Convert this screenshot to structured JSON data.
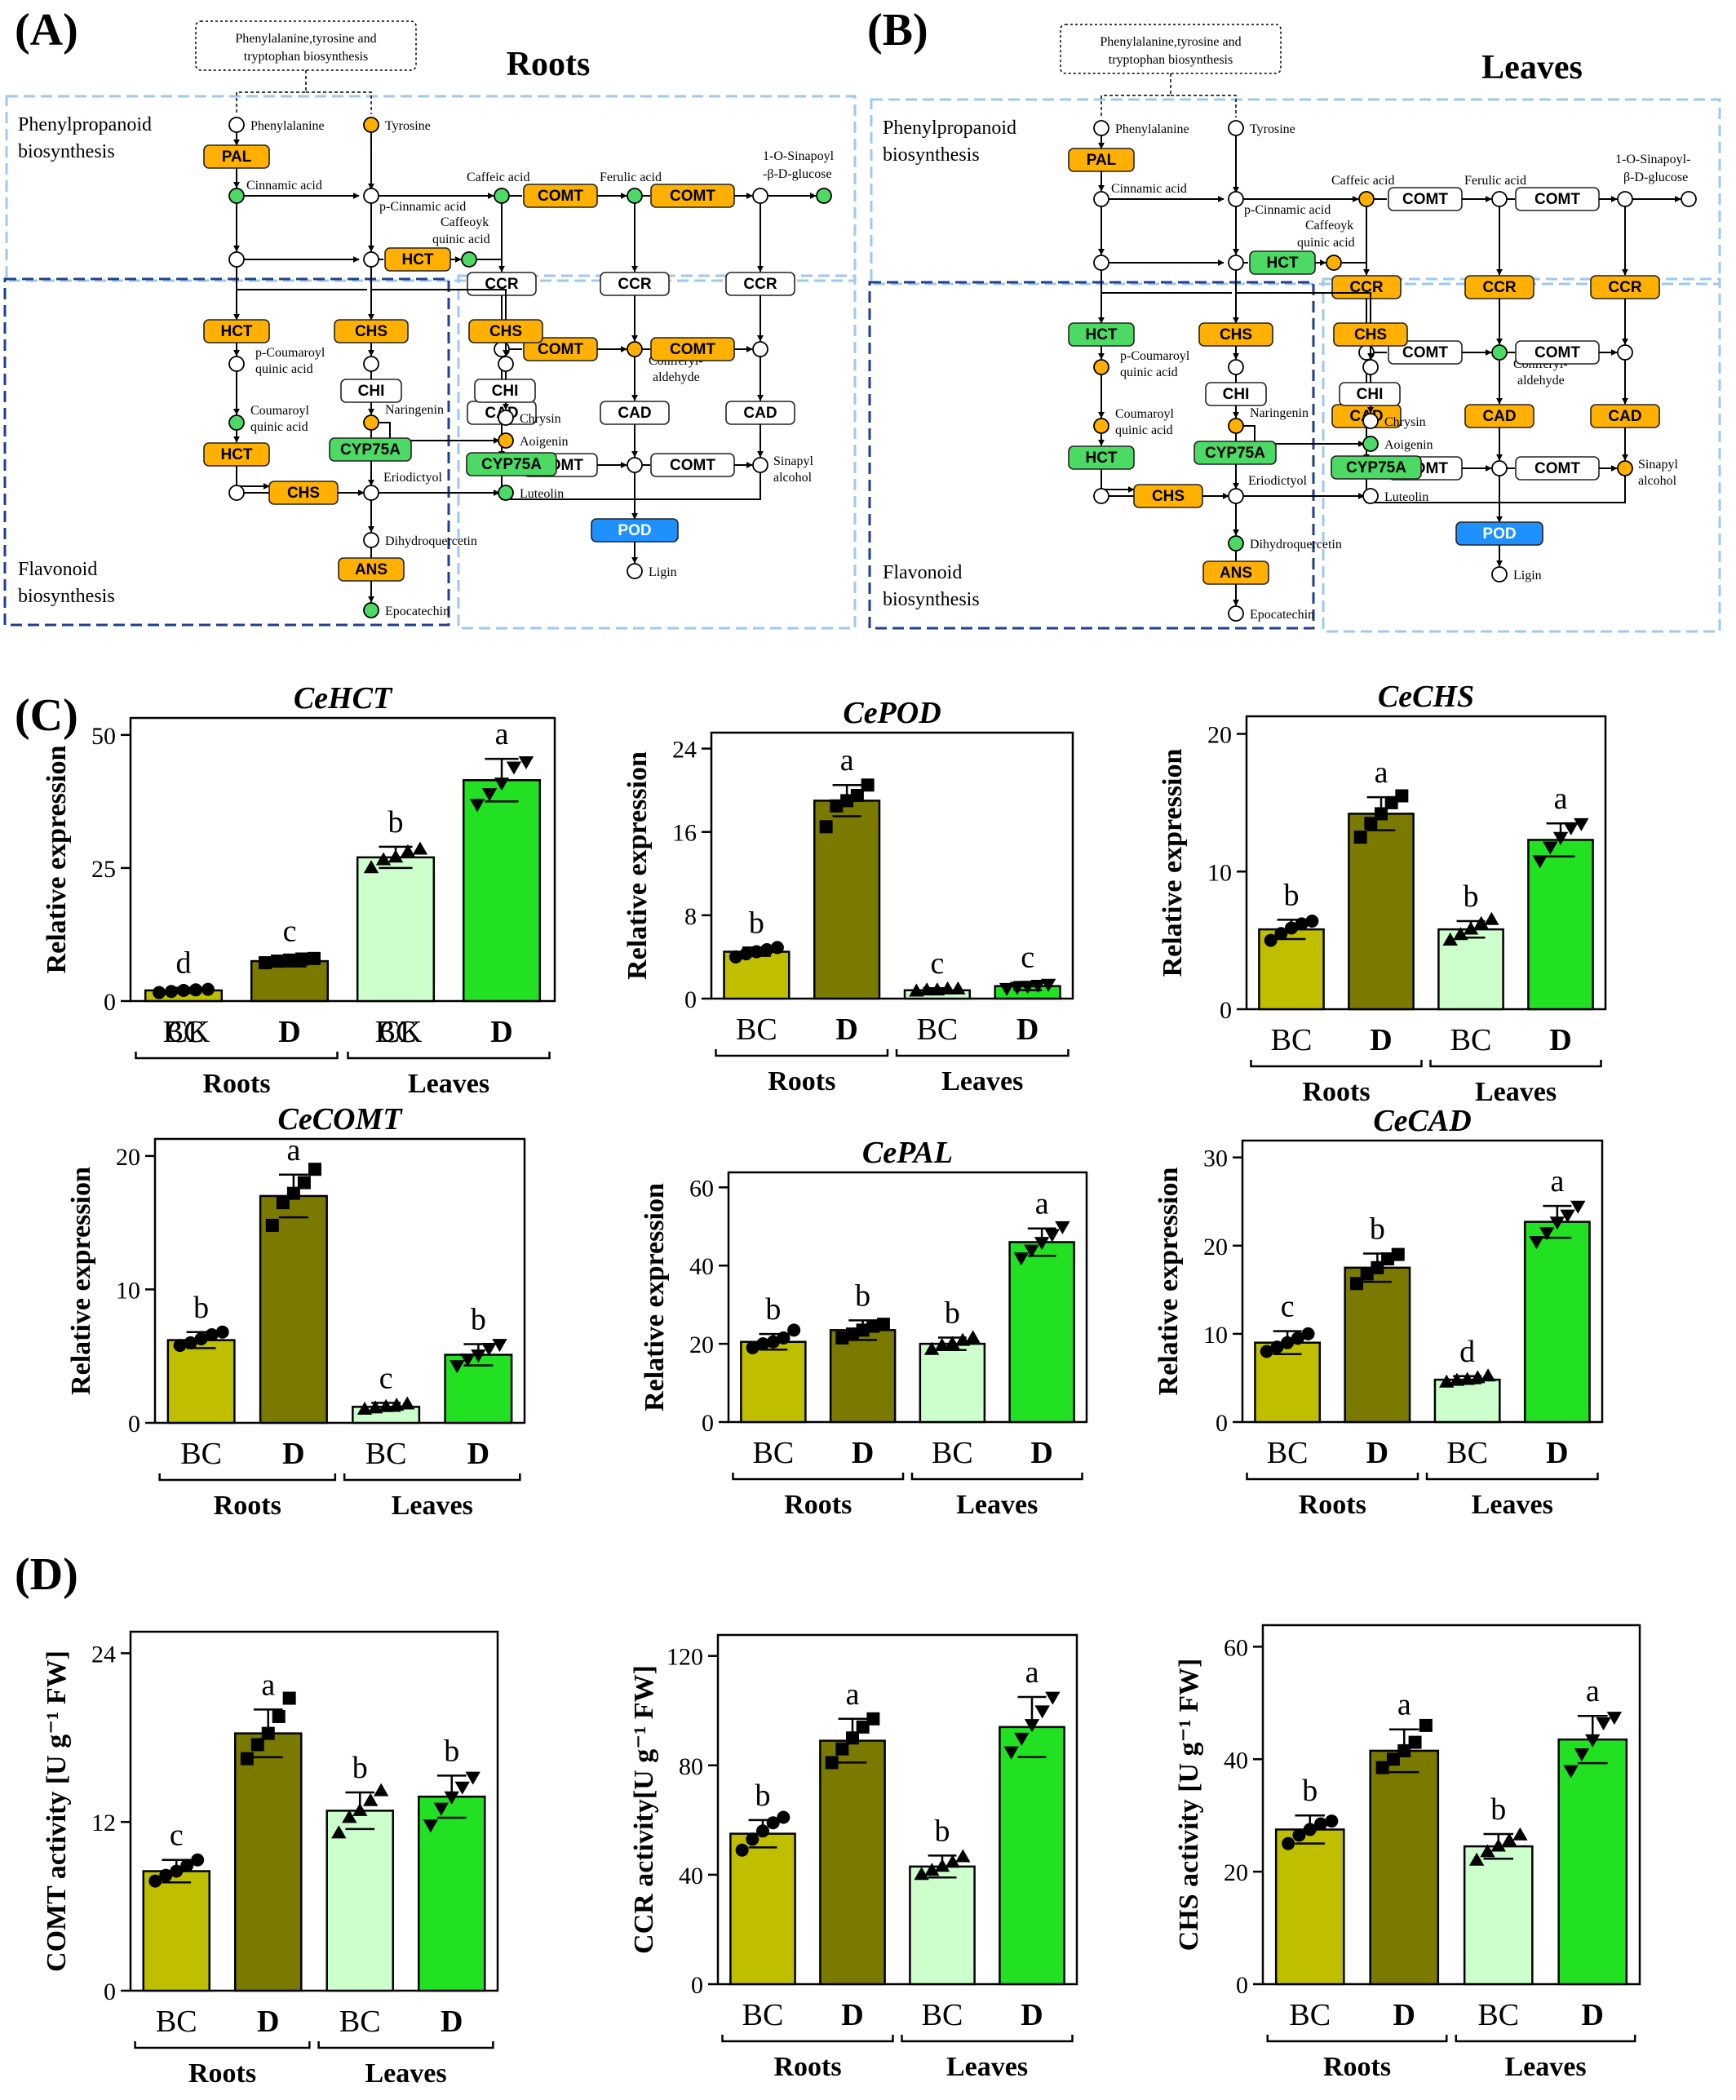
{
  "panel_labels": {
    "a": "(A)",
    "b": "(B)",
    "c": "(C)",
    "d": "(D)"
  },
  "colors": {
    "up": "#FFB000",
    "down": "#4CD964",
    "none": "#FFFFFF",
    "pod": "#1E90FF",
    "box_phenyl": "#9FC8EE",
    "box_flav": "#1F3F8F",
    "bar_bc_root": "#BFBF00",
    "bar_d_root": "#7A7A00",
    "bar_bc_leaf": "#CCFFCC",
    "bar_d_leaf": "#22E022"
  },
  "pathway_a": {
    "title": "Roots",
    "source": "Phenylalanine,tyrosine and tryptophan biosynthesis",
    "region_phenyl": "Phenylpropanoid biosynthesis",
    "region_flav": "Flavonoid biosynthesis",
    "enzymes": {
      "PAL": "up",
      "HCT_top": "up",
      "COMT_1": "up",
      "COMT_2": "up",
      "CCR_1": "none",
      "CCR_2": "none",
      "CCR_3": "none",
      "COMT_3": "up",
      "COMT_4": "up",
      "CAD_1": "none",
      "CAD_2": "none",
      "CAD_3": "none",
      "COMT_5": "none",
      "COMT_6": "none",
      "POD": "pod",
      "HCT_f1": "up",
      "CHS_1": "up",
      "CHS_2": "up",
      "CHI_1": "none",
      "CHI_2": "none",
      "HCT_f2": "up",
      "CYP75A_1": "down",
      "CYP75A_2": "down",
      "CHS_3": "up",
      "ANS": "up"
    },
    "metabolites": {
      "phenylalanine": "none",
      "tyrosine": "up",
      "cinnamic": "down",
      "p_cinnamic": "none",
      "caffeic": "down",
      "ferulic": "down",
      "sinapoyl_glucose": "down",
      "caffeoyl_quinic": "down",
      "coniferyl": "up",
      "sinapyl": "none",
      "p_coumaroyl": "none",
      "coumaroyl_quinic": "down",
      "naringenin": "up",
      "chrysin": "none",
      "aoigenin": "up",
      "luteolin": "down",
      "eriodictyol": "none",
      "dihydroquercetin": "none",
      "epocatechin": "down",
      "ligin": "none"
    }
  },
  "pathway_b": {
    "title": "Leaves",
    "source": "Phenylalanine,tyrosine and tryptophan biosynthesis",
    "region_phenyl": "Phenylpropanoid biosynthesis",
    "region_flav": "Flavonoid biosynthesis",
    "enzymes": {
      "PAL": "up",
      "HCT_top": "down",
      "COMT_1": "none",
      "COMT_2": "none",
      "CCR_1": "up",
      "CCR_2": "up",
      "CCR_3": "up",
      "COMT_3": "none",
      "COMT_4": "none",
      "CAD_1": "up",
      "CAD_2": "up",
      "CAD_3": "up",
      "COMT_5": "none",
      "COMT_6": "none",
      "POD": "pod",
      "HCT_f1": "down",
      "CHS_1": "up",
      "CHS_2": "up",
      "CHI_1": "none",
      "CHI_2": "none",
      "HCT_f2": "down",
      "CYP75A_1": "down",
      "CYP75A_2": "down",
      "CHS_3": "up",
      "ANS": "up"
    },
    "metabolites": {
      "phenylalanine": "none",
      "tyrosine": "none",
      "cinnamic": "none",
      "p_cinnamic": "none",
      "caffeic": "up",
      "ferulic": "none",
      "sinapoyl_glucose": "none",
      "caffeoyl_quinic": "up",
      "coniferyl": "down",
      "sinapyl": "up",
      "p_coumaroyl": "up",
      "coumaroyl_quinic": "up",
      "naringenin": "up",
      "chrysin": "none",
      "aoigenin": "down",
      "luteolin": "none",
      "eriodictyol": "none",
      "dihydroquercetin": "down",
      "epocatechin": "none",
      "ligin": "none"
    }
  },
  "metabolite_labels": {
    "phenylalanine": "Phenylalanine",
    "tyrosine": "Tyrosine",
    "cinnamic": "Cinnamic acid",
    "p_cinnamic": "p-Cinnamic acid",
    "caffeic": "Caffeic acid",
    "ferulic": "Ferulic acid",
    "sinapoyl_glucose_1": "1-O-Sinapoyl",
    "sinapoyl_glucose_a2": "-β-D-glucose",
    "sinapoyl_glucose_b1": "1-O-Sinapoyl-",
    "sinapoyl_glucose_b2": "β-D-glucose",
    "caffeoyl_quinic_a1": "Caffeoyk",
    "caffeoyl_quinic_2": "quinic acid",
    "caffeoyl_quinic_b1": "Caffeoyk",
    "coniferyl_1": "Coniferyl-",
    "coniferyl_2": "aldehyde",
    "sinapyl_1": "Sinapyl",
    "sinapyl_2": "alcohol",
    "p_coumaroyl_1": "p-Coumaroyl",
    "p_coumaroyl_2": "quinic acid",
    "coumaroyl_quinic_1": "Coumaroyl",
    "coumaroyl_quinic_2": "quinic acid",
    "naringenin": "Naringenin",
    "chrysin": "Chrysin",
    "aoigenin": "Aoigenin",
    "luteolin": "Luteolin",
    "eriodictyol": "Eriodictyol",
    "dihydroquercetin": "Dihydroquercetin",
    "epocatechin": "Epocatechin",
    "ligin": "Ligin"
  },
  "chart_data": [
    {
      "id": "hct",
      "type": "bar",
      "title": "CeHCT",
      "ylabel": "Relative expression",
      "ylim": [
        0,
        50
      ],
      "yticks": [
        0,
        25,
        50
      ],
      "categories": [
        "BC",
        "D",
        "BC",
        "D"
      ],
      "groups": [
        "Roots",
        "Leaves"
      ],
      "values": [
        2,
        7.5,
        27,
        41.5
      ],
      "errors": [
        0.5,
        1,
        2,
        4
      ],
      "letters": [
        "d",
        "c",
        "b",
        "a"
      ],
      "points": [
        [
          1.6,
          1.8,
          2.0,
          2.1,
          2.2
        ],
        [
          7.2,
          7.5,
          7.7,
          7.9,
          8.0
        ],
        [
          25,
          26.5,
          27,
          28,
          28.5
        ],
        [
          37,
          39,
          41,
          44,
          45
        ]
      ],
      "xlabel_overlap": [
        "CK",
        "CK"
      ],
      "grid": false
    },
    {
      "id": "pod",
      "type": "bar",
      "title": "CePOD",
      "ylabel": "Relative expression",
      "ylim": [
        0,
        24
      ],
      "yticks": [
        0,
        8,
        16,
        24
      ],
      "categories": [
        "BC",
        "D",
        "BC",
        "D"
      ],
      "groups": [
        "Roots",
        "Leaves"
      ],
      "values": [
        4.5,
        19,
        0.8,
        1.2
      ],
      "errors": [
        0.4,
        1.5,
        0.2,
        0.4
      ],
      "letters": [
        "b",
        "a",
        "c",
        "c"
      ],
      "points": [
        [
          4.0,
          4.3,
          4.5,
          4.7,
          4.9
        ],
        [
          16.5,
          18.5,
          19,
          19.5,
          20.5
        ],
        [
          0.7,
          0.8,
          0.8,
          0.9,
          0.9
        ],
        [
          1.0,
          1.1,
          1.2,
          1.3,
          1.4
        ]
      ],
      "grid": false
    },
    {
      "id": "chs",
      "type": "bar",
      "title": "CeCHS",
      "ylabel": "Relative expression",
      "ylim": [
        0,
        20
      ],
      "yticks": [
        0,
        10,
        20
      ],
      "categories": [
        "BC",
        "D",
        "BC",
        "D"
      ],
      "groups": [
        "Roots",
        "Leaves"
      ],
      "values": [
        5.8,
        14.2,
        5.8,
        12.3
      ],
      "errors": [
        0.7,
        1.2,
        0.6,
        1.2
      ],
      "letters": [
        "b",
        "a",
        "b",
        "a"
      ],
      "points": [
        [
          5.0,
          5.5,
          5.9,
          6.2,
          6.4
        ],
        [
          12.5,
          13.5,
          14.2,
          15,
          15.5
        ],
        [
          5.0,
          5.4,
          5.8,
          6.2,
          6.5
        ],
        [
          10.8,
          11.8,
          12.5,
          13.2,
          13.5
        ]
      ],
      "grid": false
    },
    {
      "id": "comt",
      "type": "bar",
      "title": "CeCOMT",
      "ylabel": "Relative expression",
      "ylim": [
        0,
        20
      ],
      "yticks": [
        0,
        10,
        20
      ],
      "categories": [
        "BC",
        "D",
        "BC",
        "D"
      ],
      "groups": [
        "Roots",
        "Leaves"
      ],
      "values": [
        6.2,
        17,
        1.2,
        5.1
      ],
      "errors": [
        0.6,
        1.6,
        0.3,
        0.8
      ],
      "letters": [
        "b",
        "a",
        "c",
        "b"
      ],
      "points": [
        [
          5.8,
          6.0,
          6.3,
          6.6,
          6.8
        ],
        [
          14.8,
          16.5,
          17.2,
          18,
          19
        ],
        [
          1.0,
          1.1,
          1.2,
          1.3,
          1.4
        ],
        [
          4.3,
          4.8,
          5.1,
          5.6,
          5.9
        ]
      ],
      "grid": false
    },
    {
      "id": "pal",
      "type": "bar",
      "title": "CePAL",
      "ylabel": "Relative expression",
      "ylim": [
        0,
        60
      ],
      "yticks": [
        0,
        20,
        40,
        60
      ],
      "categories": [
        "BC",
        "D",
        "BC",
        "D"
      ],
      "groups": [
        "Roots",
        "Leaves"
      ],
      "values": [
        20.5,
        23.5,
        20,
        46
      ],
      "errors": [
        2,
        2.5,
        1.6,
        3.5
      ],
      "letters": [
        "b",
        "b",
        "b",
        "a"
      ],
      "points": [
        [
          19,
          20,
          20.5,
          21.5,
          23.5
        ],
        [
          21.5,
          22.5,
          23.5,
          24.5,
          25
        ],
        [
          18.5,
          19.5,
          20,
          20.8,
          21.5
        ],
        [
          42,
          44,
          46,
          48,
          50
        ]
      ],
      "grid": false
    },
    {
      "id": "cad",
      "type": "bar",
      "title": "CeCAD",
      "ylabel": "Relative expression",
      "ylim": [
        0,
        30
      ],
      "yticks": [
        0,
        10,
        20,
        30
      ],
      "categories": [
        "BC",
        "D",
        "BC",
        "D"
      ],
      "groups": [
        "Roots",
        "Leaves"
      ],
      "values": [
        9,
        17.5,
        4.8,
        22.7
      ],
      "errors": [
        1.3,
        1.6,
        0.4,
        1.8
      ],
      "letters": [
        "c",
        "b",
        "d",
        "a"
      ],
      "points": [
        [
          8.0,
          8.5,
          9.0,
          9.5,
          10
        ],
        [
          15.7,
          16.8,
          17.5,
          18.5,
          19
        ],
        [
          4.5,
          4.7,
          4.8,
          5.0,
          5.2
        ],
        [
          20.5,
          21.5,
          22.7,
          23.5,
          24.5
        ]
      ],
      "grid": false
    },
    {
      "id": "comt_act",
      "type": "bar",
      "title": "",
      "ylabel": "COMT activity [U g⁻¹ FW]",
      "ylim": [
        0,
        24
      ],
      "yticks": [
        0,
        12,
        24
      ],
      "categories": [
        "BC",
        "D",
        "BC",
        "D"
      ],
      "groups": [
        "Roots",
        "Leaves"
      ],
      "values": [
        8.5,
        18.3,
        12.8,
        13.8
      ],
      "errors": [
        0.8,
        1.7,
        1.3,
        1.5
      ],
      "letters": [
        "c",
        "a",
        "b",
        "b"
      ],
      "points": [
        [
          7.8,
          8.2,
          8.5,
          8.9,
          9.3
        ],
        [
          16.5,
          17.5,
          18.3,
          19.5,
          20.8
        ],
        [
          11.2,
          12.3,
          12.8,
          13.5,
          14.2
        ],
        [
          11.8,
          13,
          13.8,
          14.5,
          15.2
        ]
      ],
      "grid": false
    },
    {
      "id": "ccr_act",
      "type": "bar",
      "title": "",
      "ylabel": "CCR activity[U g⁻¹ FW]",
      "ylim": [
        0,
        120
      ],
      "yticks": [
        0,
        40,
        80,
        120
      ],
      "categories": [
        "BC",
        "D",
        "BC",
        "D"
      ],
      "groups": [
        "Roots",
        "Leaves"
      ],
      "values": [
        55,
        89,
        43,
        94
      ],
      "errors": [
        5,
        8,
        4,
        11
      ],
      "letters": [
        "b",
        "a",
        "b",
        "a"
      ],
      "points": [
        [
          49,
          53,
          56,
          59,
          61
        ],
        [
          81,
          86,
          90,
          94,
          97
        ],
        [
          40,
          41.5,
          43,
          44.5,
          46.5
        ],
        [
          85,
          90,
          95,
          100,
          105
        ]
      ],
      "grid": false
    },
    {
      "id": "chs_act",
      "type": "bar",
      "title": "",
      "ylabel": "CHS activity [U g⁻¹ FW]",
      "ylim": [
        0,
        60
      ],
      "yticks": [
        0,
        20,
        40,
        60
      ],
      "categories": [
        "BC",
        "D",
        "BC",
        "D"
      ],
      "groups": [
        "Roots",
        "Leaves"
      ],
      "values": [
        27.5,
        41.5,
        24.5,
        43.5
      ],
      "errors": [
        2.5,
        3.8,
        2.2,
        4.2
      ],
      "letters": [
        "b",
        "a",
        "b",
        "a"
      ],
      "points": [
        [
          25,
          26.5,
          27.5,
          28.5,
          29
        ],
        [
          38.5,
          40,
          41.5,
          43,
          46
        ],
        [
          22,
          23.5,
          24.5,
          25.5,
          26.5
        ],
        [
          38,
          41,
          43.5,
          46.5,
          47.5
        ]
      ],
      "grid": false
    }
  ]
}
